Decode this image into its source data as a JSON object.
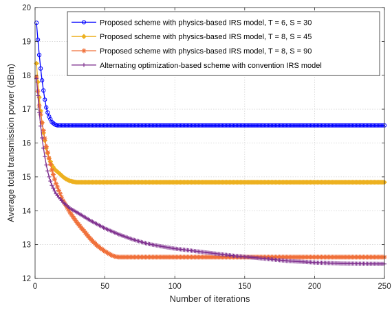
{
  "chart_data": {
    "type": "line",
    "title": "",
    "xlabel": "Number of iterations",
    "ylabel": "Average total transmission power (dBm)",
    "xlim": [
      0,
      250
    ],
    "ylim": [
      12,
      20
    ],
    "xticks": [
      0,
      50,
      100,
      150,
      200,
      250
    ],
    "yticks": [
      12,
      13,
      14,
      15,
      16,
      17,
      18,
      19,
      20
    ],
    "grid": true,
    "legend_position": "top-right",
    "series": [
      {
        "name": "Proposed scheme with physics-based IRS model, T = 6, S = 30",
        "color": "#0000ff",
        "marker": "circle",
        "x": [
          1,
          2,
          3,
          4,
          5,
          6,
          7,
          8,
          9,
          10,
          12,
          14,
          16,
          20,
          30,
          50,
          100,
          150,
          200,
          250
        ],
        "y": [
          19.55,
          19.05,
          18.6,
          18.2,
          17.85,
          17.55,
          17.28,
          17.05,
          16.9,
          16.78,
          16.62,
          16.55,
          16.52,
          16.52,
          16.52,
          16.52,
          16.52,
          16.52,
          16.52,
          16.52
        ]
      },
      {
        "name": "Proposed scheme with physics-based IRS model, T = 8, S = 45",
        "color": "#edb120",
        "marker": "diamond",
        "x": [
          1,
          2,
          3,
          4,
          5,
          6,
          8,
          10,
          12,
          14,
          16,
          18,
          20,
          22,
          25,
          28,
          30,
          40,
          60,
          100,
          150,
          200,
          250
        ],
        "y": [
          18.35,
          17.8,
          17.35,
          16.95,
          16.6,
          16.3,
          15.85,
          15.55,
          15.35,
          15.22,
          15.15,
          15.08,
          15.0,
          14.94,
          14.88,
          14.85,
          14.84,
          14.84,
          14.84,
          14.84,
          14.84,
          14.84,
          14.84
        ]
      },
      {
        "name": "Proposed scheme with physics-based IRS model, T = 8, S = 90",
        "color": "#f0703a",
        "marker": "star",
        "x": [
          1,
          3,
          5,
          8,
          10,
          12,
          15,
          20,
          25,
          30,
          35,
          40,
          45,
          50,
          55,
          58,
          60,
          80,
          100,
          150,
          200,
          250
        ],
        "y": [
          17.95,
          17.1,
          16.6,
          15.9,
          15.55,
          15.2,
          14.8,
          14.3,
          13.95,
          13.65,
          13.4,
          13.15,
          12.95,
          12.8,
          12.68,
          12.64,
          12.63,
          12.63,
          12.63,
          12.63,
          12.63,
          12.63
        ]
      },
      {
        "name": "Alternating optimization-based scheme with convention IRS model",
        "color": "#7e2f8e",
        "marker": "plus",
        "x": [
          1,
          2,
          3,
          4,
          5,
          6,
          8,
          10,
          12,
          15,
          20,
          25,
          30,
          40,
          50,
          60,
          70,
          80,
          90,
          100,
          120,
          140,
          160,
          180,
          200,
          220,
          250
        ],
        "y": [
          17.9,
          17.4,
          16.9,
          16.5,
          16.15,
          15.85,
          15.35,
          15.0,
          14.75,
          14.5,
          14.25,
          14.07,
          13.95,
          13.7,
          13.48,
          13.3,
          13.15,
          13.03,
          12.95,
          12.88,
          12.78,
          12.68,
          12.6,
          12.52,
          12.47,
          12.44,
          12.43
        ]
      }
    ]
  }
}
